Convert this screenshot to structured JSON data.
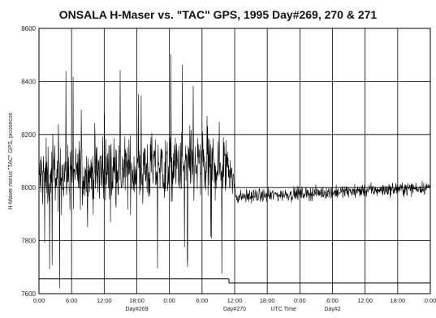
{
  "chart_data": {
    "type": "line",
    "title": "ONSALA H-Maser  vs.  \"TAC\" GPS, 1995 Day#269, 270 & 271",
    "ylabel": "H-Maser minus \"TAC\" GPS, picosecon",
    "xlabel": "UTC Time",
    "ylim": [
      7600,
      8600
    ],
    "yticks": [
      7600,
      7800,
      8000,
      8200,
      8400,
      8600
    ],
    "xlim": [
      0,
      48
    ],
    "x_units": "hours UTC from 0:00 Day#269",
    "xtick_labels": [
      "0:00",
      "6:00",
      "12:00",
      "18:00",
      "0:00",
      "6:00",
      "12:00",
      "18:00",
      "0:00",
      "6:00",
      "12:00",
      "18:00",
      "0:00"
    ],
    "day_labels": [
      {
        "text": "Day#269",
        "x": 12
      },
      {
        "text": "Day#270",
        "x": 24
      },
      {
        "text": "Day#2",
        "x": 36
      }
    ],
    "grid": true,
    "series": [
      {
        "style": "noisy-line",
        "segments": [
          {
            "x_start": 0,
            "x_end": 23.5,
            "mean": 8040,
            "noise": 130,
            "slope_to": 8090
          },
          {
            "x_start": 23.5,
            "x_end": 24.3,
            "mean": 8060,
            "noise": 60,
            "slope_to": 7960
          },
          {
            "x_start": 24.3,
            "x_end": 48,
            "mean": 7965,
            "noise": 25,
            "slope_to": 8000
          }
        ]
      }
    ],
    "baseline": {
      "first": {
        "x_start": 0,
        "x_end": 23.3,
        "y": 7656
      },
      "second": {
        "x_start": 23.3,
        "x_end": 48,
        "y": 7640
      }
    }
  }
}
